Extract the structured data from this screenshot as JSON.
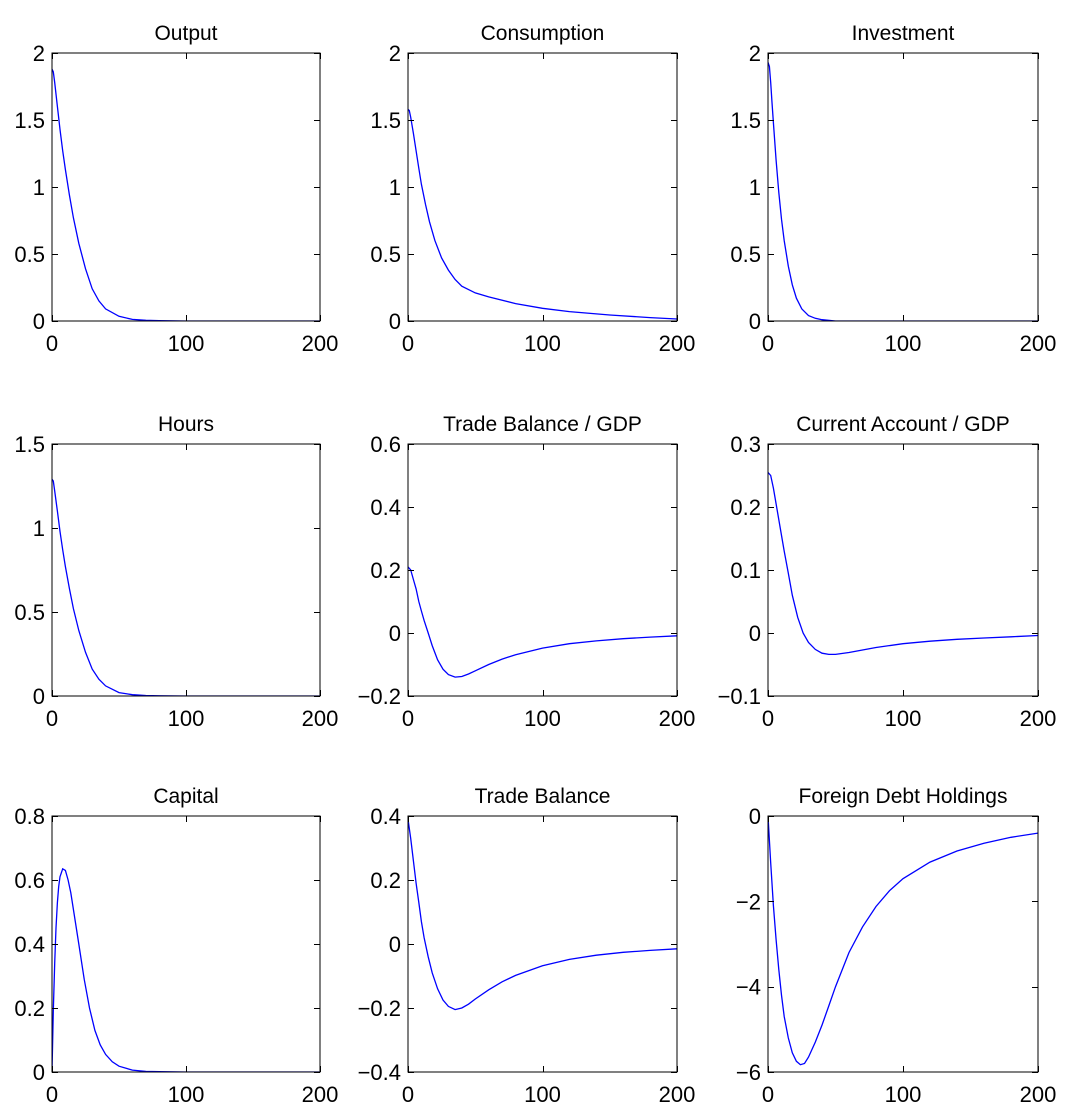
{
  "figure": {
    "background": "#ffffff",
    "line_color": "#0000ff"
  },
  "chart_data": [
    {
      "type": "line",
      "title": "Output",
      "xlim": [
        0,
        200
      ],
      "ylim": [
        0,
        2
      ],
      "xticks": [
        0,
        100,
        200
      ],
      "xtick_labels": [
        "0",
        "100",
        "200"
      ],
      "yticks": [
        0,
        0.5,
        1,
        1.5,
        2
      ],
      "ytick_labels": [
        "0",
        "0.5",
        "1",
        "1.5",
        "2"
      ],
      "series": [
        {
          "color": "#0000ff",
          "x": [
            0,
            1,
            2,
            4,
            6,
            8,
            10,
            13,
            16,
            20,
            25,
            30,
            35,
            40,
            50,
            60,
            70,
            80,
            100,
            120,
            150,
            200
          ],
          "y": [
            1.88,
            1.86,
            1.78,
            1.6,
            1.43,
            1.27,
            1.13,
            0.94,
            0.77,
            0.58,
            0.39,
            0.24,
            0.15,
            0.09,
            0.035,
            0.012,
            0.005,
            0.002,
            0.0,
            0.0,
            0.0,
            0.0
          ]
        }
      ]
    },
    {
      "type": "line",
      "title": "Consumption",
      "xlim": [
        0,
        200
      ],
      "ylim": [
        0,
        2
      ],
      "xticks": [
        0,
        100,
        200
      ],
      "xtick_labels": [
        "0",
        "100",
        "200"
      ],
      "yticks": [
        0,
        0.5,
        1,
        1.5,
        2
      ],
      "ytick_labels": [
        "0",
        "0.5",
        "1",
        "1.5",
        "2"
      ],
      "series": [
        {
          "color": "#0000ff",
          "x": [
            0,
            1,
            2,
            4,
            6,
            8,
            10,
            13,
            16,
            20,
            25,
            30,
            35,
            40,
            50,
            60,
            80,
            100,
            120,
            150,
            180,
            200
          ],
          "y": [
            1.58,
            1.57,
            1.52,
            1.4,
            1.27,
            1.14,
            1.02,
            0.87,
            0.74,
            0.6,
            0.47,
            0.38,
            0.31,
            0.26,
            0.21,
            0.18,
            0.13,
            0.095,
            0.07,
            0.045,
            0.025,
            0.015
          ]
        }
      ]
    },
    {
      "type": "line",
      "title": "Investment",
      "xlim": [
        0,
        200
      ],
      "ylim": [
        0,
        2
      ],
      "xticks": [
        0,
        100,
        200
      ],
      "xtick_labels": [
        "0",
        "100",
        "200"
      ],
      "yticks": [
        0,
        0.5,
        1,
        1.5,
        2
      ],
      "ytick_labels": [
        "0",
        "0.5",
        "1",
        "1.5",
        "2"
      ],
      "series": [
        {
          "color": "#0000ff",
          "x": [
            0,
            1,
            2,
            3,
            4,
            6,
            8,
            10,
            12,
            15,
            18,
            21,
            25,
            30,
            35,
            40,
            50,
            60,
            80,
            100,
            150,
            200
          ],
          "y": [
            1.93,
            1.9,
            1.78,
            1.63,
            1.48,
            1.2,
            0.96,
            0.76,
            0.6,
            0.41,
            0.27,
            0.17,
            0.09,
            0.04,
            0.02,
            0.01,
            0.0,
            0.0,
            0.0,
            0.0,
            0.0,
            0.0
          ]
        }
      ]
    },
    {
      "type": "line",
      "title": "Hours",
      "xlim": [
        0,
        200
      ],
      "ylim": [
        0,
        1.5
      ],
      "xticks": [
        0,
        100,
        200
      ],
      "xtick_labels": [
        "0",
        "100",
        "200"
      ],
      "yticks": [
        0,
        0.5,
        1,
        1.5
      ],
      "ytick_labels": [
        "0",
        "0.5",
        "1",
        "1.5"
      ],
      "series": [
        {
          "color": "#0000ff",
          "x": [
            0,
            1,
            2,
            4,
            6,
            8,
            10,
            13,
            16,
            20,
            25,
            30,
            35,
            40,
            50,
            60,
            70,
            80,
            100,
            150,
            200
          ],
          "y": [
            1.29,
            1.28,
            1.22,
            1.1,
            0.98,
            0.87,
            0.77,
            0.64,
            0.52,
            0.39,
            0.26,
            0.16,
            0.1,
            0.06,
            0.02,
            0.008,
            0.003,
            0.001,
            0.0,
            0.0,
            0.0
          ]
        }
      ]
    },
    {
      "type": "line",
      "title": "Trade Balance / GDP",
      "xlim": [
        0,
        200
      ],
      "ylim": [
        -0.2,
        0.6
      ],
      "xticks": [
        0,
        100,
        200
      ],
      "xtick_labels": [
        "0",
        "100",
        "200"
      ],
      "yticks": [
        -0.2,
        0,
        0.2,
        0.4,
        0.6
      ],
      "ytick_labels": [
        "−0.2",
        "0",
        "0.2",
        "0.4",
        "0.6"
      ],
      "series": [
        {
          "color": "#0000ff",
          "x": [
            0,
            2,
            4,
            6,
            8,
            10,
            12,
            15,
            18,
            22,
            26,
            30,
            35,
            40,
            45,
            50,
            60,
            70,
            80,
            100,
            120,
            140,
            160,
            180,
            200
          ],
          "y": [
            0.21,
            0.2,
            0.17,
            0.14,
            0.1,
            0.07,
            0.04,
            0.0,
            -0.04,
            -0.085,
            -0.115,
            -0.132,
            -0.14,
            -0.138,
            -0.13,
            -0.12,
            -0.1,
            -0.083,
            -0.069,
            -0.048,
            -0.034,
            -0.025,
            -0.018,
            -0.013,
            -0.009
          ]
        }
      ]
    },
    {
      "type": "line",
      "title": "Current Account / GDP",
      "xlim": [
        0,
        200
      ],
      "ylim": [
        -0.1,
        0.3
      ],
      "xticks": [
        0,
        100,
        200
      ],
      "xtick_labels": [
        "0",
        "100",
        "200"
      ],
      "yticks": [
        -0.1,
        0,
        0.1,
        0.2,
        0.3
      ],
      "ytick_labels": [
        "−0.1",
        "0",
        "0.1",
        "0.2",
        "0.3"
      ],
      "series": [
        {
          "color": "#0000ff",
          "x": [
            0,
            2,
            4,
            6,
            8,
            10,
            12,
            15,
            18,
            22,
            26,
            30,
            35,
            40,
            45,
            50,
            60,
            70,
            80,
            100,
            120,
            140,
            160,
            180,
            200
          ],
          "y": [
            0.255,
            0.25,
            0.23,
            0.205,
            0.18,
            0.155,
            0.13,
            0.095,
            0.06,
            0.025,
            0.0,
            -0.015,
            -0.026,
            -0.032,
            -0.034,
            -0.034,
            -0.031,
            -0.027,
            -0.023,
            -0.017,
            -0.013,
            -0.01,
            -0.008,
            -0.006,
            -0.004
          ]
        }
      ]
    },
    {
      "type": "line",
      "title": "Capital",
      "xlim": [
        0,
        200
      ],
      "ylim": [
        0,
        0.8
      ],
      "xticks": [
        0,
        100,
        200
      ],
      "xtick_labels": [
        "0",
        "100",
        "200"
      ],
      "yticks": [
        0,
        0.2,
        0.4,
        0.6,
        0.8
      ],
      "ytick_labels": [
        "0",
        "0.2",
        "0.4",
        "0.6",
        "0.8"
      ],
      "series": [
        {
          "color": "#0000ff",
          "x": [
            0,
            1,
            2,
            3,
            4,
            5,
            6,
            8,
            10,
            12,
            14,
            17,
            20,
            24,
            28,
            32,
            36,
            40,
            45,
            50,
            60,
            70,
            80,
            100,
            150,
            200
          ],
          "y": [
            0.0,
            0.19,
            0.34,
            0.45,
            0.53,
            0.58,
            0.61,
            0.635,
            0.63,
            0.6,
            0.56,
            0.48,
            0.4,
            0.29,
            0.2,
            0.13,
            0.085,
            0.055,
            0.032,
            0.018,
            0.006,
            0.002,
            0.001,
            0.0,
            0.0,
            0.0
          ]
        }
      ]
    },
    {
      "type": "line",
      "title": "Trade Balance",
      "xlim": [
        0,
        200
      ],
      "ylim": [
        -0.4,
        0.4
      ],
      "xticks": [
        0,
        100,
        200
      ],
      "xtick_labels": [
        "0",
        "100",
        "200"
      ],
      "yticks": [
        -0.4,
        -0.2,
        0,
        0.2,
        0.4
      ],
      "ytick_labels": [
        "−0.4",
        "−0.2",
        "0",
        "0.2",
        "0.4"
      ],
      "series": [
        {
          "color": "#0000ff",
          "x": [
            0,
            2,
            4,
            6,
            8,
            10,
            12,
            15,
            18,
            22,
            26,
            30,
            35,
            40,
            45,
            50,
            60,
            70,
            80,
            100,
            120,
            140,
            160,
            180,
            200
          ],
          "y": [
            0.39,
            0.33,
            0.26,
            0.19,
            0.13,
            0.07,
            0.02,
            -0.04,
            -0.09,
            -0.14,
            -0.175,
            -0.195,
            -0.205,
            -0.2,
            -0.188,
            -0.172,
            -0.143,
            -0.118,
            -0.098,
            -0.068,
            -0.048,
            -0.035,
            -0.026,
            -0.02,
            -0.015
          ]
        }
      ]
    },
    {
      "type": "line",
      "title": "Foreign Debt Holdings",
      "xlim": [
        0,
        200
      ],
      "ylim": [
        -6,
        0
      ],
      "xticks": [
        0,
        100,
        200
      ],
      "xtick_labels": [
        "0",
        "100",
        "200"
      ],
      "yticks": [
        -6,
        -4,
        -2,
        0
      ],
      "ytick_labels": [
        "−6",
        "−4",
        "−2",
        "0"
      ],
      "series": [
        {
          "color": "#0000ff",
          "x": [
            0,
            2,
            4,
            6,
            8,
            10,
            12,
            15,
            18,
            21,
            24,
            27,
            30,
            35,
            40,
            45,
            50,
            60,
            70,
            80,
            90,
            100,
            120,
            140,
            160,
            180,
            200
          ],
          "y": [
            0.0,
            -1.1,
            -2.1,
            -2.9,
            -3.6,
            -4.2,
            -4.7,
            -5.2,
            -5.55,
            -5.75,
            -5.83,
            -5.8,
            -5.65,
            -5.3,
            -4.9,
            -4.45,
            -4.0,
            -3.2,
            -2.6,
            -2.12,
            -1.75,
            -1.47,
            -1.08,
            -0.82,
            -0.64,
            -0.5,
            -0.4
          ]
        }
      ]
    }
  ]
}
